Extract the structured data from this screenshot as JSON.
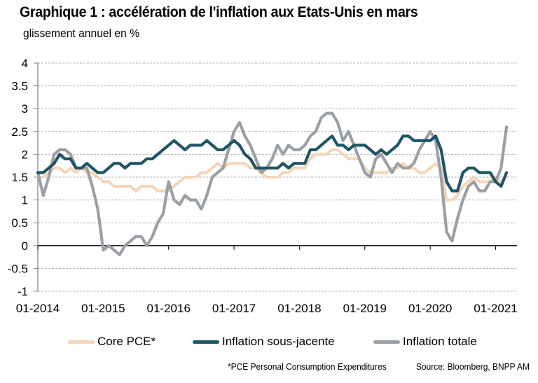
{
  "header": {
    "title": "Graphique 1 : accélération de l'inflation aux Etats-Unis en mars",
    "subtitle": "glissement annuel en %"
  },
  "footer": {
    "note": "*PCE  Personal Consumption Expenditures",
    "source": "Source: Bloomberg, BNPP AM"
  },
  "colors": {
    "core_pce": "#f5d5b5",
    "sous_jacente": "#1e5566",
    "totale": "#9aa0a6",
    "grid": "#b0b0b0",
    "zero_line": "#000000",
    "axis": "#808080"
  },
  "chart_data": {
    "type": "line",
    "title": "Graphique 1 : accélération de l'inflation aux Etats-Unis en mars",
    "subtitle": "glissement annuel en %",
    "xlabel": "",
    "ylabel": "glissement annuel en %",
    "ylim": [
      -1,
      4
    ],
    "yticks": [
      "4",
      "3.5",
      "3",
      "2.5",
      "2",
      "1.5",
      "1",
      "0.5",
      "0",
      "-0.5",
      "-1"
    ],
    "ytick_values": [
      4,
      3.5,
      3,
      2.5,
      2,
      1.5,
      1,
      0.5,
      0,
      -0.5,
      -1
    ],
    "xticks": [
      "01-2014",
      "01-2015",
      "01-2016",
      "01-2017",
      "01-2018",
      "01-2019",
      "01-2020",
      "01-2021"
    ],
    "x_start": "01-2014",
    "x_frequency": "monthly",
    "grid": true,
    "legend_position": "bottom",
    "series": [
      {
        "name": "Core PCE*",
        "color": "#f5d5b5",
        "values": [
          1.5,
          1.5,
          1.6,
          1.7,
          1.7,
          1.6,
          1.7,
          1.6,
          1.7,
          1.6,
          1.6,
          1.5,
          1.4,
          1.4,
          1.3,
          1.3,
          1.3,
          1.3,
          1.2,
          1.3,
          1.3,
          1.3,
          1.2,
          1.2,
          1.2,
          1.3,
          1.4,
          1.5,
          1.5,
          1.5,
          1.6,
          1.6,
          1.7,
          1.8,
          1.7,
          1.8,
          1.8,
          1.8,
          1.8,
          1.7,
          1.7,
          1.6,
          1.5,
          1.5,
          1.5,
          1.6,
          1.6,
          1.7,
          1.7,
          1.7,
          1.9,
          2.0,
          2.0,
          2.0,
          2.1,
          2.1,
          2.0,
          1.9,
          1.9,
          1.9,
          1.7,
          1.6,
          1.6,
          1.6,
          1.6,
          1.7,
          1.7,
          1.8,
          1.7,
          1.7,
          1.6,
          1.6,
          1.7,
          1.8,
          1.7,
          1.0,
          1.0,
          1.1,
          1.3,
          1.4,
          1.5,
          1.4,
          1.4,
          1.4,
          1.5,
          1.4
        ]
      },
      {
        "name": "Inflation sous-jacente",
        "color": "#1e5566",
        "values": [
          1.6,
          1.6,
          1.7,
          1.8,
          2.0,
          1.9,
          1.9,
          1.7,
          1.7,
          1.8,
          1.7,
          1.6,
          1.6,
          1.7,
          1.8,
          1.8,
          1.7,
          1.8,
          1.8,
          1.8,
          1.9,
          1.9,
          2.0,
          2.1,
          2.2,
          2.3,
          2.2,
          2.1,
          2.2,
          2.2,
          2.2,
          2.3,
          2.2,
          2.1,
          2.1,
          2.2,
          2.3,
          2.2,
          2.0,
          1.9,
          1.7,
          1.7,
          1.7,
          1.7,
          1.7,
          1.8,
          1.7,
          1.8,
          1.8,
          1.8,
          2.1,
          2.1,
          2.2,
          2.3,
          2.4,
          2.2,
          2.2,
          2.1,
          2.2,
          2.2,
          2.2,
          2.1,
          2.0,
          2.1,
          2.0,
          2.1,
          2.2,
          2.4,
          2.4,
          2.3,
          2.3,
          2.3,
          2.3,
          2.4,
          2.1,
          1.4,
          1.2,
          1.2,
          1.6,
          1.7,
          1.7,
          1.6,
          1.6,
          1.6,
          1.4,
          1.3,
          1.6
        ]
      },
      {
        "name": "Inflation totale",
        "color": "#9aa0a6",
        "values": [
          1.6,
          1.1,
          1.5,
          2.0,
          2.1,
          2.1,
          2.0,
          1.7,
          1.7,
          1.7,
          1.3,
          0.8,
          -0.1,
          0.0,
          -0.1,
          -0.2,
          0.0,
          0.1,
          0.2,
          0.2,
          0.0,
          0.2,
          0.5,
          0.7,
          1.4,
          1.0,
          0.9,
          1.1,
          1.0,
          1.0,
          0.8,
          1.1,
          1.5,
          1.6,
          1.7,
          2.1,
          2.5,
          2.7,
          2.4,
          2.2,
          1.9,
          1.6,
          1.7,
          1.9,
          2.2,
          2.0,
          2.2,
          2.1,
          2.1,
          2.2,
          2.4,
          2.5,
          2.8,
          2.9,
          2.9,
          2.7,
          2.3,
          2.5,
          2.2,
          1.9,
          1.6,
          1.5,
          1.9,
          2.0,
          1.8,
          1.6,
          1.8,
          1.7,
          1.7,
          1.8,
          2.1,
          2.3,
          2.5,
          2.3,
          1.5,
          0.3,
          0.1,
          0.6,
          1.0,
          1.3,
          1.4,
          1.2,
          1.2,
          1.4,
          1.4,
          1.7,
          2.6
        ]
      }
    ]
  }
}
